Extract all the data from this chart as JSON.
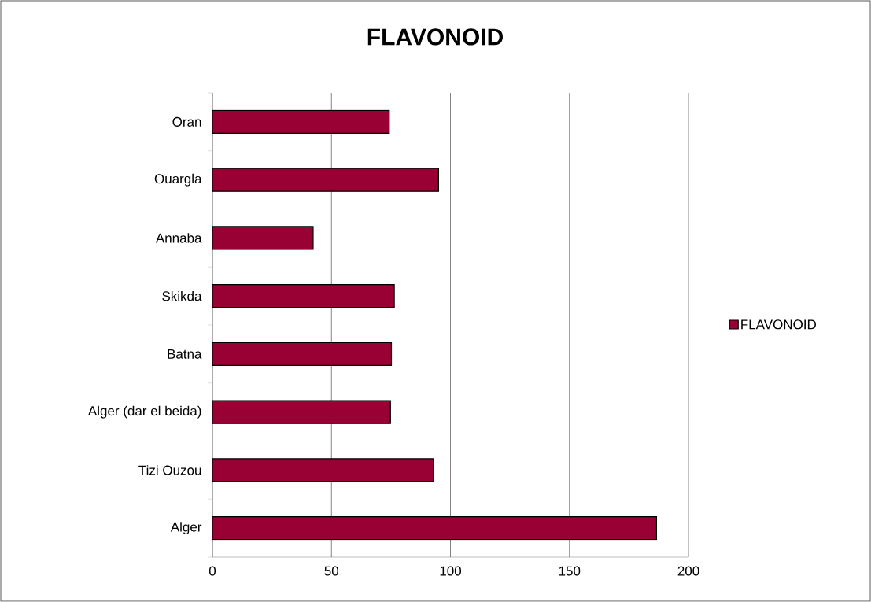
{
  "chart_data": {
    "type": "bar",
    "orientation": "horizontal",
    "title": "FLAVONOID",
    "categories": [
      "Oran",
      "Ouargla",
      "Annaba",
      "Skikda",
      "Batna",
      "Alger (dar el beida)",
      "Tizi Ouzou",
      "Alger"
    ],
    "series": [
      {
        "name": "FLAVONOID",
        "color": "#990033",
        "values": [
          74.3,
          95.0,
          42.3,
          76.4,
          75.2,
          74.8,
          92.8,
          186.6
        ]
      }
    ],
    "xlim": [
      0,
      200
    ],
    "xticks": [
      0,
      50,
      100,
      150,
      200
    ],
    "grid": "x",
    "legend": "right"
  }
}
